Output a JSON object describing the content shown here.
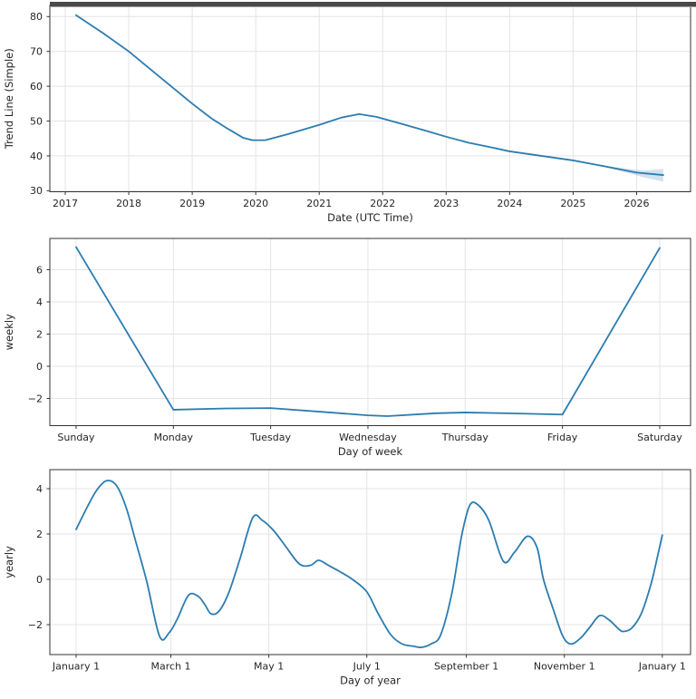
{
  "figure": {
    "kind": "forecast-components",
    "background": "#ffffff"
  },
  "colors": {
    "line": "#2b7cb0",
    "band": "rgba(43,124,176,0.22)",
    "grid": "#e4e4e4",
    "spine": "#333333",
    "tick": "#333333",
    "text": "#262626",
    "top_edge_bar": "#494949",
    "top_edge_line": "#9e9e9e"
  },
  "chart_data": [
    {
      "type": "line",
      "name": "trend",
      "ylabel": "Trend Line (Simple)",
      "xlabel": "Date (UTC Time)",
      "grid": true,
      "legend": "none",
      "smooth": false,
      "xlim": [
        2016.757,
        2026.85
      ],
      "ylim": [
        29.7,
        83.2
      ],
      "xticks": [
        {
          "v": 2017,
          "label": "2017"
        },
        {
          "v": 2018,
          "label": "2018"
        },
        {
          "v": 2019,
          "label": "2019"
        },
        {
          "v": 2020,
          "label": "2020"
        },
        {
          "v": 2021,
          "label": "2021"
        },
        {
          "v": 2022,
          "label": "2022"
        },
        {
          "v": 2023,
          "label": "2023"
        },
        {
          "v": 2024,
          "label": "2024"
        },
        {
          "v": 2025,
          "label": "2025"
        },
        {
          "v": 2026,
          "label": "2026"
        }
      ],
      "yticks": [
        {
          "v": 30,
          "label": "30"
        },
        {
          "v": 40,
          "label": "40"
        },
        {
          "v": 50,
          "label": "50"
        },
        {
          "v": 60,
          "label": "60"
        },
        {
          "v": 70,
          "label": "70"
        },
        {
          "v": 80,
          "label": "80"
        }
      ],
      "series": [
        {
          "name": "trend",
          "x": [
            2017.17,
            2017.6,
            2018,
            2018.5,
            2019,
            2019.3,
            2019.55,
            2019.8,
            2019.95,
            2020.15,
            2020.5,
            2021,
            2021.35,
            2021.63,
            2021.9,
            2022.3,
            2022.7,
            2023,
            2023.35,
            2023.7,
            2024,
            2024.5,
            2025,
            2025.5,
            2026,
            2026.42
          ],
          "y": [
            80.4,
            75.2,
            70.0,
            62.5,
            55.0,
            50.8,
            47.9,
            45.2,
            44.5,
            44.5,
            46.2,
            48.9,
            51.0,
            52.0,
            51.2,
            49.2,
            47.1,
            45.5,
            43.8,
            42.5,
            41.3,
            40.0,
            38.7,
            37.0,
            35.2,
            34.5
          ]
        }
      ],
      "band": {
        "name": "trend-uncertainty",
        "x": [
          2025.45,
          2025.8,
          2026.1,
          2026.42
        ],
        "lo": [
          37.0,
          35.4,
          33.9,
          32.6
        ],
        "hi": [
          37.4,
          36.4,
          35.8,
          36.2
        ]
      }
    },
    {
      "type": "line",
      "name": "weekly",
      "ylabel": "weekly",
      "xlabel": "Day of week",
      "grid": true,
      "legend": "none",
      "smooth": false,
      "xlim": [
        -0.27,
        6.317
      ],
      "ylim": [
        -3.69,
        7.94
      ],
      "xticks": [
        {
          "v": 0,
          "label": "Sunday"
        },
        {
          "v": 1,
          "label": "Monday"
        },
        {
          "v": 2,
          "label": "Tuesday"
        },
        {
          "v": 3,
          "label": "Wednesday"
        },
        {
          "v": 4,
          "label": "Thursday"
        },
        {
          "v": 5,
          "label": "Friday"
        },
        {
          "v": 6,
          "label": "Saturday"
        }
      ],
      "yticks": [
        {
          "v": -2,
          "label": "−2"
        },
        {
          "v": 0,
          "label": "0"
        },
        {
          "v": 2,
          "label": "2"
        },
        {
          "v": 4,
          "label": "4"
        },
        {
          "v": 6,
          "label": "6"
        }
      ],
      "series": [
        {
          "name": "weekly",
          "x": [
            0,
            1,
            1.55,
            2,
            2.5,
            3,
            3.2,
            3.7,
            4,
            4.5,
            5,
            6
          ],
          "y": [
            7.4,
            -2.7,
            -2.62,
            -2.6,
            -2.82,
            -3.05,
            -3.1,
            -2.92,
            -2.87,
            -2.93,
            -3.0,
            7.35
          ]
        }
      ],
      "band": null
    },
    {
      "type": "line",
      "name": "yearly",
      "ylabel": "yearly",
      "xlabel": "Day of year",
      "grid": true,
      "legend": "none",
      "smooth": true,
      "xlim": [
        -16.36,
        382.6
      ],
      "ylim": [
        -3.32,
        4.84
      ],
      "xticks": [
        {
          "v": 0,
          "label": "January 1"
        },
        {
          "v": 59,
          "label": "March 1"
        },
        {
          "v": 120,
          "label": "May 1"
        },
        {
          "v": 181,
          "label": "July 1"
        },
        {
          "v": 243,
          "label": "September 1"
        },
        {
          "v": 304,
          "label": "November 1"
        },
        {
          "v": 365,
          "label": "January 1"
        }
      ],
      "yticks": [
        {
          "v": -2,
          "label": "−2"
        },
        {
          "v": 0,
          "label": "0"
        },
        {
          "v": 2,
          "label": "2"
        },
        {
          "v": 4,
          "label": "4"
        }
      ],
      "series": [
        {
          "name": "yearly",
          "x": [
            0,
            7,
            13,
            19,
            25,
            31,
            37,
            44,
            52,
            58,
            63,
            70,
            76,
            80,
            84,
            89,
            95,
            102,
            110,
            116,
            123,
            130,
            139,
            146,
            151,
            157,
            164,
            172,
            181,
            188,
            196,
            203,
            210,
            215,
            221,
            227,
            234,
            240,
            245,
            250,
            257,
            266,
            273,
            281,
            287,
            291,
            297,
            303,
            308,
            314,
            320,
            326,
            332,
            338,
            341,
            346,
            352,
            358,
            362,
            365
          ],
          "y": [
            2.2,
            3.2,
            3.95,
            4.35,
            4.15,
            3.2,
            1.7,
            -0.1,
            -2.52,
            -2.35,
            -1.75,
            -0.7,
            -0.75,
            -1.1,
            -1.52,
            -1.4,
            -0.6,
            0.9,
            2.72,
            2.6,
            2.15,
            1.5,
            0.68,
            0.62,
            0.84,
            0.62,
            0.35,
            0.0,
            -0.55,
            -1.5,
            -2.45,
            -2.85,
            -2.95,
            -3.0,
            -2.85,
            -2.45,
            -0.6,
            1.9,
            3.25,
            3.3,
            2.6,
            0.8,
            1.2,
            1.9,
            1.4,
            0.0,
            -1.3,
            -2.5,
            -2.85,
            -2.6,
            -2.1,
            -1.6,
            -1.8,
            -2.2,
            -2.3,
            -2.15,
            -1.5,
            -0.2,
            1.0,
            1.95
          ]
        }
      ],
      "band": null
    }
  ]
}
